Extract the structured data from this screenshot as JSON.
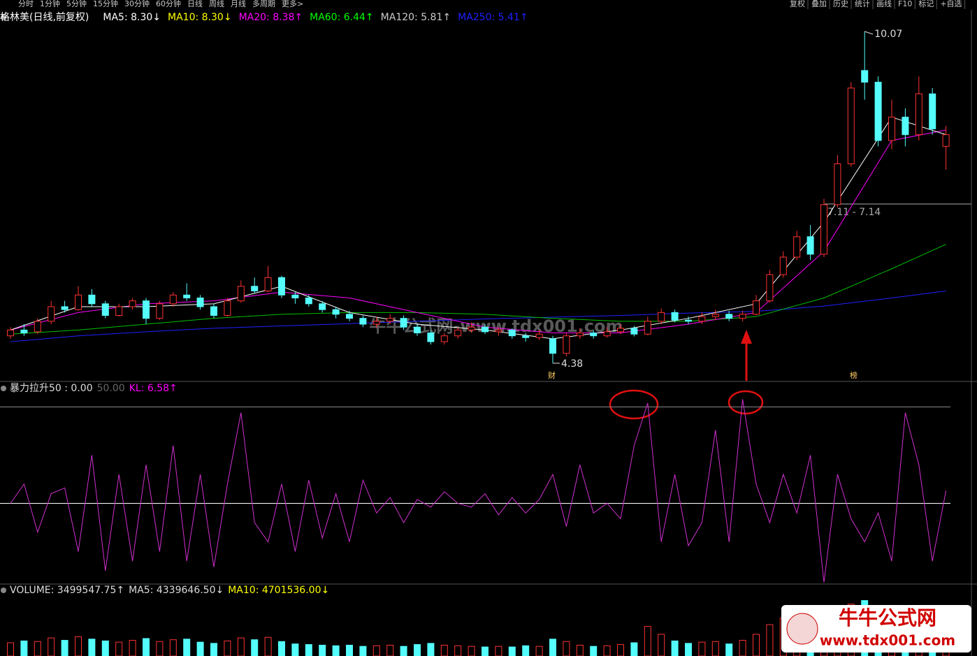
{
  "toolbar": {
    "periods": [
      "分时",
      "1分钟",
      "5分钟",
      "15分钟",
      "30分钟",
      "60分钟",
      "日线",
      "周线",
      "月线",
      "多周期",
      "更多>"
    ],
    "actions": [
      "复权",
      "叠加",
      "历史",
      "统计",
      "画线",
      "F10",
      "标记",
      "+自选"
    ]
  },
  "chart_data": [
    {
      "type": "candlestick",
      "title": "格林美(日线,前复权)",
      "legend": [
        {
          "text": "MA5: 8.30↓",
          "color": "#ffffff"
        },
        {
          "text": "MA10: 8.30↓",
          "color": "#ffff00"
        },
        {
          "text": "MA20: 8.38↑",
          "color": "#ff00ff"
        },
        {
          "text": "MA60: 6.44↑",
          "color": "#00ff00"
        },
        {
          "text": "MA120: 5.81↑",
          "color": "#cccccc"
        },
        {
          "text": "MA250: 5.41↑",
          "color": "#2020ff"
        }
      ],
      "up_color": "#ff3232",
      "down_color": "#54fcfc",
      "ylim": [
        4.08,
        10.13
      ],
      "open": [
        4.85,
        4.95,
        4.92,
        5.1,
        5.35,
        5.3,
        5.55,
        5.4,
        5.2,
        5.35,
        5.45,
        5.15,
        5.4,
        5.55,
        5.5,
        5.35,
        5.2,
        5.45,
        5.7,
        5.62,
        5.85,
        5.55,
        5.5,
        5.4,
        5.3,
        5.22,
        5.15,
        5.05,
        5.1,
        5.15,
        5.0,
        4.9,
        4.75,
        4.85,
        4.95,
        5.0,
        4.92,
        4.95,
        4.85,
        4.82,
        4.8,
        4.55,
        4.85,
        4.9,
        4.85,
        4.92,
        4.98,
        4.88,
        5.1,
        5.25,
        5.12,
        5.1,
        5.18,
        5.22,
        5.15,
        5.22,
        5.45,
        5.9,
        6.2,
        6.55,
        6.25,
        7.1,
        7.8,
        9.4,
        9.2,
        8.2,
        8.6,
        8.3,
        9.0,
        8.1
      ],
      "close": [
        4.95,
        4.9,
        5.1,
        5.35,
        5.3,
        5.55,
        5.4,
        5.2,
        5.35,
        5.45,
        5.15,
        5.4,
        5.55,
        5.5,
        5.35,
        5.2,
        5.45,
        5.7,
        5.62,
        5.85,
        5.55,
        5.5,
        5.4,
        5.3,
        5.22,
        5.15,
        5.05,
        5.1,
        5.15,
        5.0,
        4.9,
        4.75,
        4.85,
        4.95,
        5.0,
        4.92,
        4.95,
        4.85,
        4.82,
        4.88,
        4.55,
        4.85,
        4.9,
        4.85,
        4.92,
        4.98,
        4.88,
        5.1,
        5.25,
        5.12,
        5.1,
        5.18,
        5.22,
        5.15,
        5.22,
        5.45,
        5.9,
        6.2,
        6.55,
        6.25,
        7.1,
        7.8,
        9.1,
        9.2,
        8.2,
        8.6,
        8.3,
        9.0,
        8.4,
        8.3
      ],
      "high": [
        5.0,
        5.05,
        5.15,
        5.45,
        5.45,
        5.7,
        5.65,
        5.45,
        5.4,
        5.5,
        5.5,
        5.45,
        5.6,
        5.75,
        5.55,
        5.4,
        5.5,
        5.8,
        5.85,
        6.05,
        5.88,
        5.6,
        5.55,
        5.45,
        5.35,
        5.28,
        5.2,
        5.18,
        5.22,
        5.2,
        5.05,
        4.95,
        4.9,
        5.0,
        5.08,
        5.05,
        5.0,
        4.98,
        4.9,
        4.95,
        4.85,
        4.9,
        4.98,
        4.95,
        5.0,
        5.05,
        5.02,
        5.18,
        5.32,
        5.3,
        5.18,
        5.25,
        5.3,
        5.28,
        5.28,
        5.55,
        5.98,
        6.3,
        6.65,
        6.75,
        7.2,
        7.95,
        9.2,
        10.07,
        9.3,
        8.9,
        8.75,
        9.3,
        9.1,
        8.45
      ],
      "low": [
        4.8,
        4.85,
        4.88,
        5.05,
        5.25,
        5.28,
        5.35,
        5.15,
        5.18,
        5.3,
        5.05,
        5.12,
        5.35,
        5.45,
        5.3,
        5.15,
        5.18,
        5.42,
        5.58,
        5.6,
        5.5,
        5.4,
        5.35,
        5.25,
        5.15,
        5.1,
        5.0,
        4.98,
        5.05,
        4.95,
        4.85,
        4.7,
        4.7,
        4.8,
        4.9,
        4.88,
        4.85,
        4.8,
        4.75,
        4.78,
        4.38,
        4.5,
        4.8,
        4.8,
        4.82,
        4.88,
        4.84,
        4.86,
        5.05,
        5.08,
        5.05,
        5.05,
        5.12,
        5.1,
        5.1,
        5.2,
        5.42,
        5.85,
        6.15,
        6.15,
        6.2,
        7.05,
        7.75,
        8.9,
        8.1,
        8.05,
        8.1,
        8.2,
        8.3,
        7.7
      ],
      "ma_lines": [
        {
          "color": "#2020ff",
          "x": [
            0,
            5,
            10,
            15,
            20,
            25,
            30,
            35,
            40,
            45,
            50,
            55,
            60,
            65,
            69
          ],
          "values": [
            4.75,
            4.85,
            4.92,
            4.98,
            5.02,
            5.06,
            5.1,
            5.14,
            5.17,
            5.2,
            5.24,
            5.27,
            5.36,
            5.5,
            5.62
          ]
        },
        {
          "color": "#00c000",
          "x": [
            0,
            5,
            10,
            15,
            20,
            25,
            30,
            35,
            40,
            45,
            50,
            55,
            60,
            65,
            69
          ],
          "values": [
            4.88,
            4.95,
            5.05,
            5.15,
            5.22,
            5.25,
            5.25,
            5.22,
            5.15,
            5.1,
            5.1,
            5.18,
            5.5,
            6.0,
            6.42
          ]
        },
        {
          "color": "#ff00ff",
          "x": [
            0,
            5,
            10,
            15,
            20,
            25,
            30,
            35,
            40,
            45,
            50,
            55,
            60,
            65,
            69
          ],
          "values": [
            4.95,
            5.25,
            5.4,
            5.45,
            5.6,
            5.5,
            5.25,
            5.0,
            4.9,
            4.9,
            5.05,
            5.25,
            6.3,
            8.2,
            8.38
          ]
        },
        {
          "color": "#ffffff",
          "x": [
            0,
            5,
            10,
            15,
            20,
            25,
            30,
            35,
            40,
            45,
            50,
            55,
            60,
            65,
            69
          ],
          "values": [
            4.95,
            5.35,
            5.35,
            5.4,
            5.7,
            5.25,
            5.05,
            4.95,
            4.8,
            4.95,
            5.15,
            5.4,
            6.8,
            8.6,
            8.3
          ]
        }
      ],
      "annotations": [
        "7.11 - 7.14"
      ],
      "event_markers": [
        "财",
        "榜"
      ]
    },
    {
      "type": "line",
      "legend": [
        {
          "text": "暴力拉升50 : 0.00",
          "color": "#dddddd"
        },
        {
          "text": "50.00",
          "color": "#666666"
        },
        {
          "text": "KL: 6.58↑",
          "color": "#ff00ff"
        }
      ],
      "color": "#d030d0",
      "ylim": [
        -41.5,
        62.5
      ],
      "hlines": [
        50,
        0
      ],
      "values": [
        0,
        10,
        -15,
        5,
        8,
        -25,
        25,
        -35,
        15,
        -30,
        20,
        -25,
        30,
        -30,
        15,
        -33,
        10,
        47,
        -10,
        -20,
        10,
        -25,
        12,
        -18,
        5,
        -20,
        12,
        -5,
        3,
        -10,
        2,
        -2,
        6,
        0,
        -2,
        5,
        -6,
        3,
        -5,
        2,
        15,
        -12,
        20,
        -5,
        0,
        -8,
        30,
        52,
        -20,
        15,
        -22,
        -10,
        38,
        -20,
        54,
        10,
        -10,
        15,
        -5,
        25,
        -41,
        15,
        -8,
        -20,
        -5,
        -30,
        47,
        20,
        -30,
        6.58
      ]
    },
    {
      "type": "bar",
      "legend": [
        {
          "text": "VOLUME: 3499547.75↑",
          "color": "#dddddd"
        },
        {
          "text": "MA5: 4339646.50↓",
          "color": "#dddddd"
        },
        {
          "text": "MA10: 4701536.00↓",
          "color": "#ffff00"
        }
      ],
      "ylim": [
        0,
        11700000
      ],
      "values": [
        2200000,
        2500000,
        2400000,
        3000000,
        2600000,
        3200000,
        2800000,
        2500000,
        2300000,
        2600000,
        2900000,
        2400000,
        2700000,
        2800000,
        2300000,
        2100000,
        2500000,
        3000000,
        2700000,
        3100000,
        2400000,
        2000000,
        1900000,
        1800000,
        1700000,
        1800000,
        1600000,
        1700000,
        1800000,
        1600000,
        1900000,
        2100000,
        1800000,
        1700000,
        1600000,
        1500000,
        1600000,
        1500000,
        1700000,
        1600000,
        2800000,
        2400000,
        1800000,
        1600000,
        1700000,
        1900000,
        2200000,
        4900000,
        3600000,
        2500000,
        2100000,
        2300000,
        2400000,
        2000000,
        2600000,
        3600000,
        5200000,
        6300000,
        6800000,
        5600000,
        7400000,
        8100000,
        8600000,
        9200000,
        6500000,
        5300000,
        5100000,
        6000000,
        4300000,
        3499547.75
      ]
    }
  ],
  "watermark": {
    "center": "牛牛公式网-www.tdx001.com",
    "logo_title": "牛牛公式网",
    "logo_url": "www.tdx001.com"
  }
}
